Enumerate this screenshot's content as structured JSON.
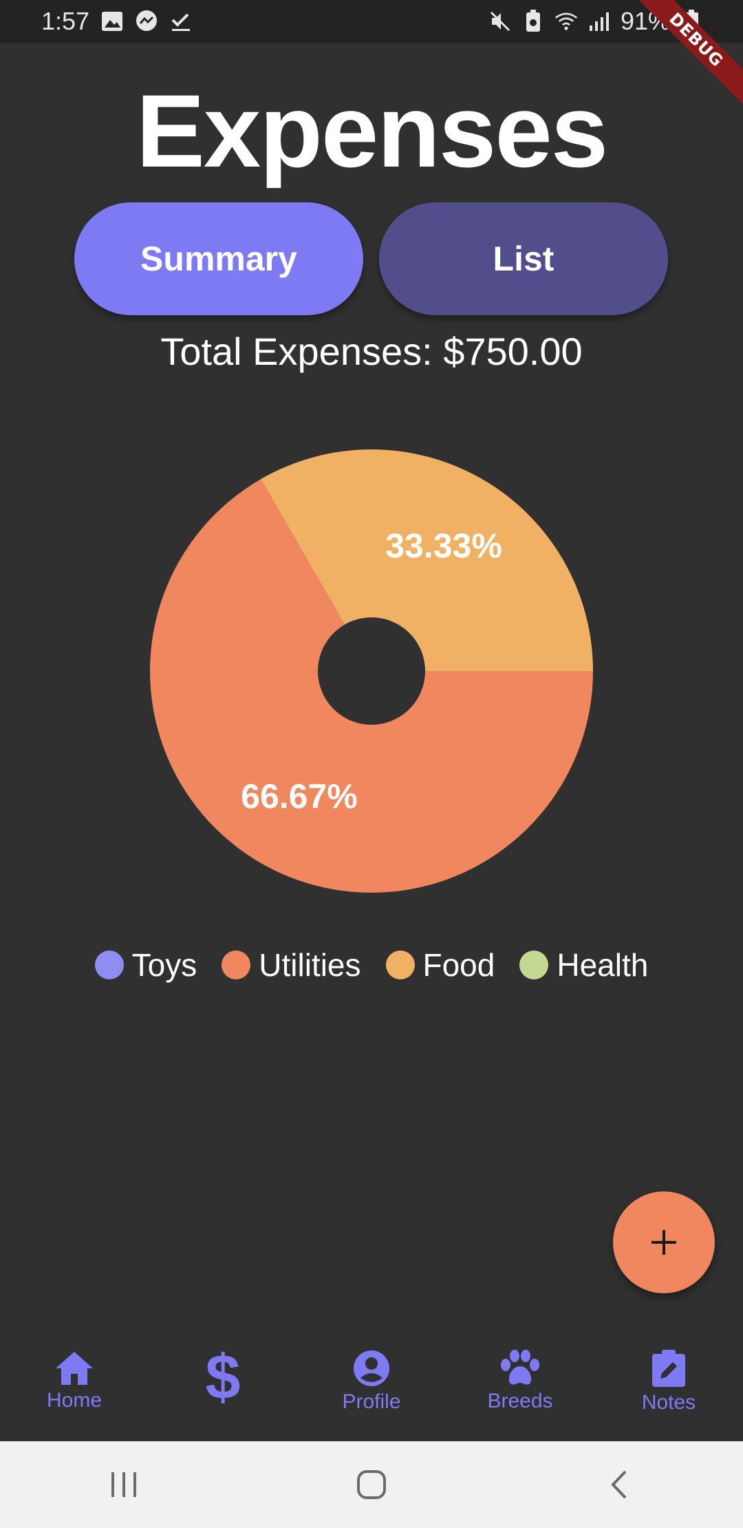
{
  "status_bar": {
    "time": "1:57",
    "battery": "91%"
  },
  "debug_banner": "DEBUG",
  "title": "Expenses",
  "toggle": {
    "summary_label": "Summary",
    "list_label": "List"
  },
  "total_label": "Total Expenses: $750.00",
  "chart_data": {
    "type": "pie",
    "donut": true,
    "categories": [
      "Toys",
      "Utilities",
      "Food",
      "Health"
    ],
    "values": [
      0,
      66.67,
      33.33,
      0
    ],
    "slice_labels": [
      "",
      "66.67%",
      "33.33%",
      ""
    ],
    "colors": [
      "#8f8cf2",
      "#f0875f",
      "#f0b165",
      "#c5d891"
    ],
    "title": "",
    "legend_position": "bottom"
  },
  "fab": {
    "label": "+",
    "color": "#f0875f"
  },
  "bottom_nav": {
    "items": [
      {
        "icon": "home-icon",
        "label": "Home"
      },
      {
        "icon": "dollar-icon",
        "label": ""
      },
      {
        "icon": "account-circle-icon",
        "label": "Profile"
      },
      {
        "icon": "paw-icon",
        "label": "Breeds"
      },
      {
        "icon": "note-edit-icon",
        "label": "Notes"
      }
    ],
    "accent": "#7e7af4"
  }
}
